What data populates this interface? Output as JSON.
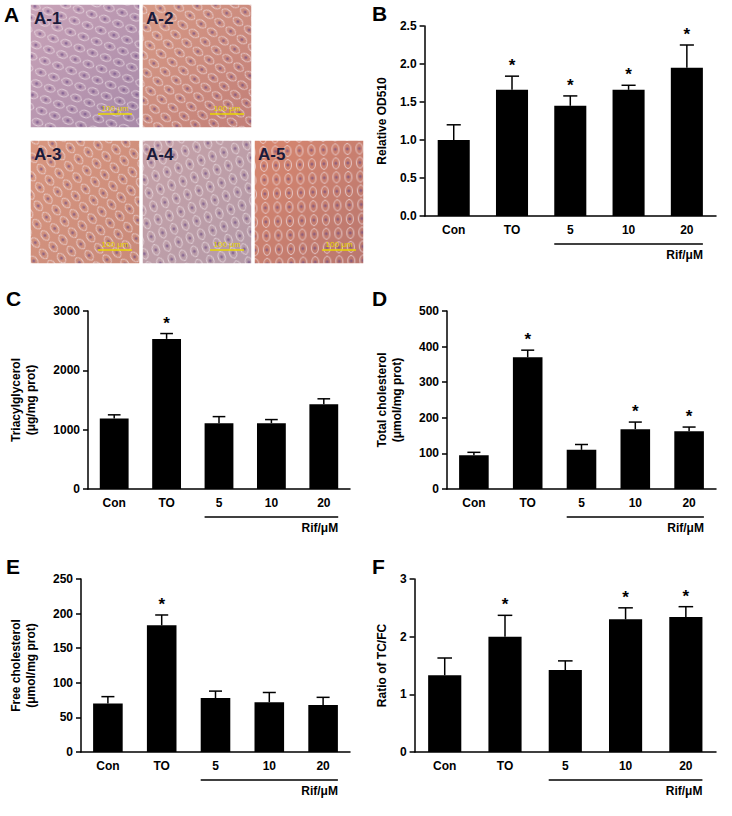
{
  "panel_a": {
    "label": "A",
    "tiles": [
      {
        "label": "A-1",
        "scale_bar": "100 μm"
      },
      {
        "label": "A-2",
        "scale_bar": "100 μm"
      },
      {
        "label": "A-3",
        "scale_bar": "100 μm"
      },
      {
        "label": "A-4",
        "scale_bar": "100 μm"
      },
      {
        "label": "A-5",
        "scale_bar": "100 μm"
      }
    ]
  },
  "chart_data": [
    {
      "type": "bar",
      "title": "B",
      "ylabel": "Relative OD510",
      "categories": [
        "Con",
        "TO",
        "5",
        "10",
        "20"
      ],
      "values": [
        1.0,
        1.66,
        1.45,
        1.66,
        1.95
      ],
      "errors": [
        0.2,
        0.18,
        0.13,
        0.06,
        0.3
      ],
      "significance": [
        null,
        "*",
        "*",
        "*",
        "*"
      ],
      "color": "#000000",
      "ylim": [
        0,
        2.5
      ],
      "yticks": [
        {
          "value": 0,
          "label": "0.0"
        },
        0.5,
        {
          "value": 1,
          "label": "1.0"
        },
        1.5,
        {
          "value": 2,
          "label": "2.0"
        },
        2.5
      ],
      "annotations": [
        {
          "text": "Rif/μM",
          "from": "5",
          "to": "20"
        }
      ],
      "grid": false
    },
    {
      "type": "bar",
      "title": "C",
      "ylabel": "Triacylglycerol\n(μg/mg prot)",
      "categories": [
        "Con",
        "TO",
        "5",
        "10",
        "20"
      ],
      "values": [
        1190,
        2530,
        1110,
        1110,
        1430
      ],
      "errors": [
        60,
        90,
        110,
        60,
        90
      ],
      "significance": [
        null,
        "*",
        null,
        null,
        null
      ],
      "color": "#000000",
      "ylim": [
        0,
        3000
      ],
      "yticks": [
        0,
        1000,
        2000,
        3000
      ],
      "annotations": [
        {
          "text": "Rif/μM",
          "from": "5",
          "to": "20"
        }
      ],
      "grid": false
    },
    {
      "type": "bar",
      "title": "D",
      "ylabel": "Total cholesterol\n(μmol/mg prot)",
      "categories": [
        "Con",
        "TO",
        "5",
        "10",
        "20"
      ],
      "values": [
        95,
        370,
        110,
        168,
        162
      ],
      "errors": [
        8,
        20,
        15,
        20,
        12
      ],
      "significance": [
        null,
        "*",
        null,
        "*",
        "*"
      ],
      "color": "#000000",
      "ylim": [
        0,
        500
      ],
      "yticks": [
        0,
        100,
        200,
        300,
        400,
        500
      ],
      "annotations": [
        {
          "text": "Rif/μM",
          "from": "5",
          "to": "20"
        }
      ],
      "grid": false
    },
    {
      "type": "bar",
      "title": "E",
      "ylabel": "Free cholesterol\n(μmol/mg prot)",
      "categories": [
        "Con",
        "TO",
        "5",
        "10",
        "20"
      ],
      "values": [
        70,
        183,
        78,
        72,
        68
      ],
      "errors": [
        10,
        15,
        10,
        14,
        11
      ],
      "significance": [
        null,
        "*",
        null,
        null,
        null
      ],
      "color": "#000000",
      "ylim": [
        0,
        250
      ],
      "yticks": [
        0,
        50,
        100,
        150,
        200,
        250
      ],
      "annotations": [
        {
          "text": "Rif/μM",
          "from": "5",
          "to": "20"
        }
      ],
      "grid": false
    },
    {
      "type": "bar",
      "title": "F",
      "ylabel": "Ratio of TC/FC",
      "categories": [
        "Con",
        "TO",
        "5",
        "10",
        "20"
      ],
      "values": [
        1.33,
        2.0,
        1.42,
        2.3,
        2.34
      ],
      "errors": [
        0.3,
        0.37,
        0.16,
        0.2,
        0.18
      ],
      "significance": [
        null,
        "*",
        null,
        "*",
        "*"
      ],
      "color": "#000000",
      "ylim": [
        0,
        3
      ],
      "yticks": [
        0,
        1,
        2,
        3
      ],
      "annotations": [
        {
          "text": "Rif/μM",
          "from": "5",
          "to": "20"
        }
      ],
      "grid": false
    }
  ]
}
